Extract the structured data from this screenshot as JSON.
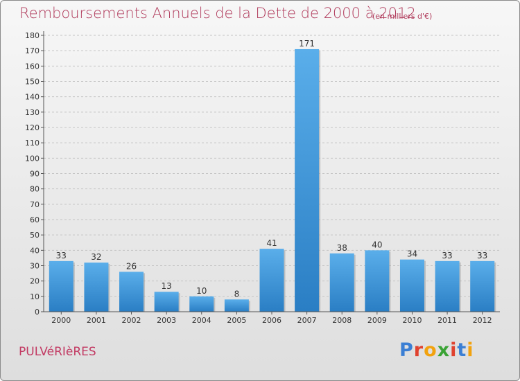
{
  "header": {
    "title": "Remboursements Annuels de la Dette de 2000 à 2012",
    "unit": "(en milliers d'€)"
  },
  "footer": {
    "commune": "PULVéRIèRES",
    "brand_letters": [
      "P",
      "r",
      "o",
      "x",
      "i",
      "t",
      "i"
    ]
  },
  "colors": {
    "title": "#b03a5b",
    "bar_light": "#5aaeea",
    "bar_dark": "#2a7ec4",
    "brand": [
      "#3b7fd4",
      "#e0422f",
      "#f2a20e",
      "#3aa335",
      "#e0422f",
      "#3b7fd4",
      "#f2a20e"
    ]
  },
  "chart_data": {
    "type": "bar",
    "categories": [
      "2000",
      "2001",
      "2002",
      "2003",
      "2004",
      "2005",
      "2006",
      "2007",
      "2008",
      "2009",
      "2010",
      "2011",
      "2012"
    ],
    "values": [
      33,
      32,
      26,
      13,
      10,
      8,
      41,
      171,
      38,
      40,
      34,
      33,
      33
    ],
    "data_labels": [
      "33",
      "32",
      "26",
      "13",
      "10",
      "8",
      "41",
      "171",
      "38",
      "40",
      "34",
      "33",
      "33"
    ],
    "y_ticks": [
      "0",
      "10",
      "20",
      "30",
      "40",
      "50",
      "60",
      "70",
      "80",
      "90",
      "100",
      "110",
      "120",
      "130",
      "140",
      "150",
      "160",
      "170",
      "180"
    ],
    "ylim": [
      0,
      180
    ],
    "grid": "horizontal dashed",
    "xlabel": "",
    "ylabel": ""
  }
}
